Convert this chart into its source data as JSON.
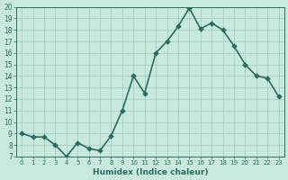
{
  "xlabel": "Humidex (Indice chaleur)",
  "x_values": [
    0,
    1,
    2,
    3,
    4,
    5,
    6,
    7,
    8,
    9,
    10,
    11,
    12,
    13,
    14,
    15,
    16,
    17,
    18,
    19,
    20,
    21,
    22,
    23
  ],
  "y_values": [
    9,
    8.7,
    8.7,
    8,
    7,
    8.2,
    7.7,
    7.5,
    8.8,
    11,
    14,
    12.5,
    16,
    17,
    18.3,
    19.9,
    18.1,
    18.6,
    18,
    16.6,
    15,
    14,
    13.8,
    12.2
  ],
  "xlim": [
    -0.5,
    23.5
  ],
  "ylim": [
    7,
    20
  ],
  "yticks": [
    7,
    8,
    9,
    10,
    11,
    12,
    13,
    14,
    15,
    16,
    17,
    18,
    19,
    20
  ],
  "xticks": [
    0,
    1,
    2,
    3,
    4,
    5,
    6,
    7,
    8,
    9,
    10,
    11,
    12,
    13,
    14,
    15,
    16,
    17,
    18,
    19,
    20,
    21,
    22,
    23
  ],
  "line_color": "#2e6b5e",
  "marker_color": "#2e6b5e",
  "bg_color": "#c8e8e0",
  "grid_color": "#a0c8c0",
  "tick_color": "#2e6b5e",
  "label_color": "#2e6b5e"
}
